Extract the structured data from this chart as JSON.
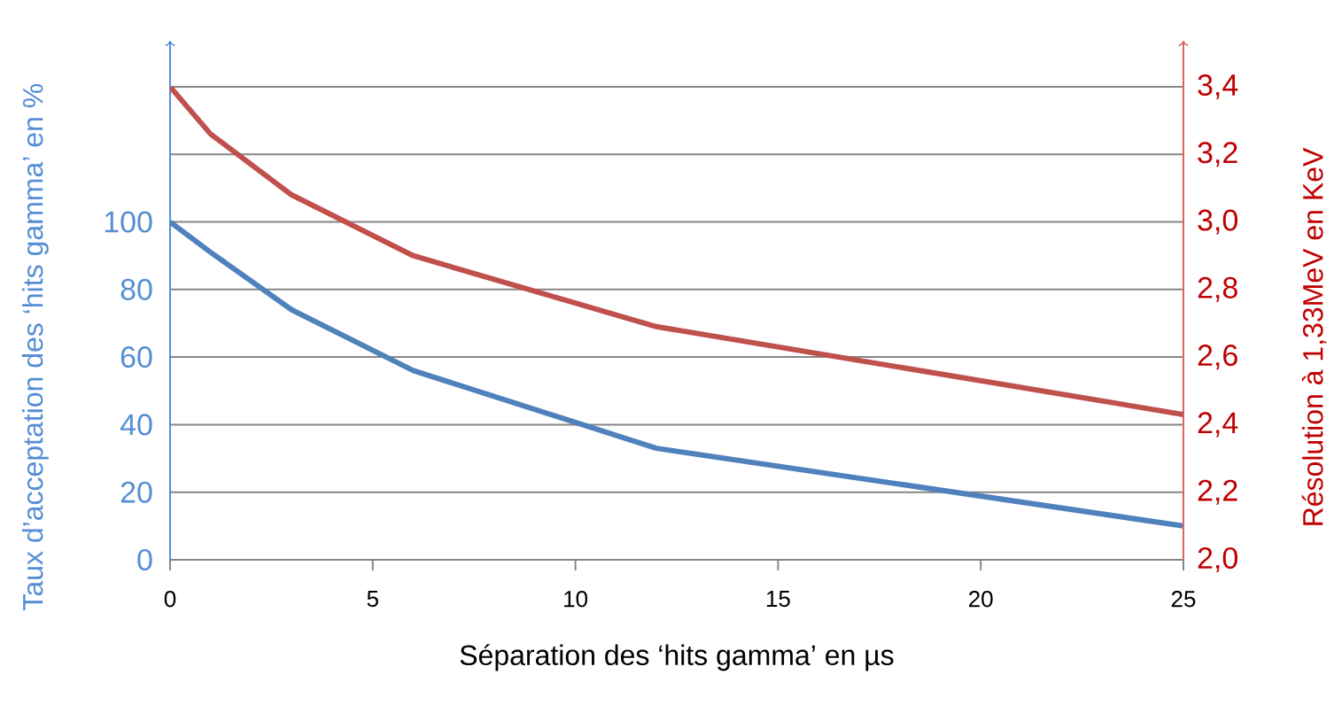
{
  "chart_data": {
    "type": "line",
    "xlabel": "Séparation des ‘hits gamma’  en µs",
    "ylabel": "Taux d’acceptation des ‘hits gamma’ en %",
    "y2label": "Résolution à 1,33MeV en KeV",
    "x": [
      0,
      1,
      3,
      6,
      12,
      25
    ],
    "xlim": [
      0,
      25
    ],
    "xticks": [
      0,
      5,
      10,
      15,
      20,
      25
    ],
    "ylim": [
      0,
      140
    ],
    "yticks": [
      0,
      20,
      40,
      60,
      80,
      100,
      {
        "value": 120,
        "label": null
      },
      {
        "value": 140,
        "label": null
      }
    ],
    "y2lim": [
      2.0,
      3.4
    ],
    "y2ticks": [
      {
        "value": 2.0,
        "label": "2,0"
      },
      {
        "value": 2.2,
        "label": "2,2"
      },
      {
        "value": 2.4,
        "label": "2,4"
      },
      {
        "value": 2.6,
        "label": "2,6"
      },
      {
        "value": 2.8,
        "label": "2,8"
      },
      {
        "value": 3.0,
        "label": "3,0"
      },
      {
        "value": 3.2,
        "label": "3,2"
      },
      {
        "value": 3.4,
        "label": "3,4"
      }
    ],
    "grid": "y",
    "series": [
      {
        "color": "#4f81bd",
        "values": [
          100,
          91,
          74,
          56,
          33,
          10
        ]
      },
      {
        "color": "#c0504d",
        "axis": "y2",
        "values": [
          3.4,
          3.26,
          3.08,
          2.9,
          2.69,
          2.43
        ]
      }
    ]
  }
}
